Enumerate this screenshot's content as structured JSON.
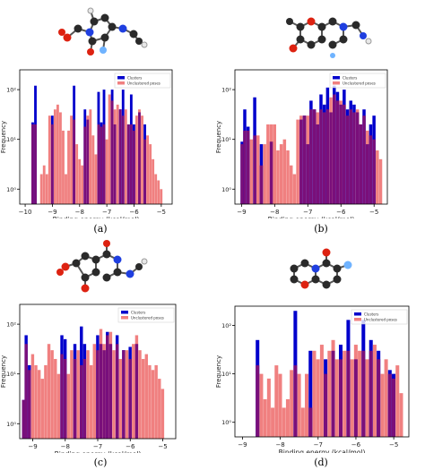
{
  "figure": {
    "captions": [
      "(a)",
      "(b)",
      "(c)",
      "(d)"
    ]
  },
  "colors": {
    "clusters": "#0000cc",
    "unclustered": "#f08080",
    "overlap": "#7a0f7a",
    "atom_carbon": "#2a2a2a",
    "atom_oxygen": "#dd2211",
    "atom_nitrogen": "#1f3fe0",
    "atom_fluorine": "#6fb3ff",
    "atom_hydrogen": "#e8e8e8"
  },
  "chart_data": [
    {
      "type": "bar",
      "log_y": true,
      "xlabel": "Binding energy (kcal/mol)",
      "ylabel": "Frequency",
      "xlim": [
        -10.2,
        -4.6
      ],
      "ylim": [
        0.5,
        250
      ],
      "xticks": [
        -10,
        -9,
        -8,
        -7,
        -6,
        -5
      ],
      "yticks": [
        1,
        10,
        100
      ],
      "ytick_labels": [
        "10⁰",
        "10¹",
        "10²"
      ],
      "legend": [
        "Clusters",
        "Unclustered poses"
      ],
      "legend_position": "top-right",
      "bins": [
        {
          "x": -9.72,
          "u": 20,
          "c": 22
        },
        {
          "x": -9.62,
          "u": 20,
          "c": 120
        },
        {
          "x": -9.4,
          "u": 2,
          "c": 0
        },
        {
          "x": -9.3,
          "u": 3,
          "c": 0
        },
        {
          "x": -9.2,
          "u": 2,
          "c": 0
        },
        {
          "x": -9.1,
          "u": 30,
          "c": 0
        },
        {
          "x": -9.0,
          "u": 20,
          "c": 30
        },
        {
          "x": -8.9,
          "u": 40,
          "c": 0
        },
        {
          "x": -8.8,
          "u": 50,
          "c": 0
        },
        {
          "x": -8.7,
          "u": 35,
          "c": 0
        },
        {
          "x": -8.6,
          "u": 15,
          "c": 0
        },
        {
          "x": -8.5,
          "u": 2,
          "c": 0
        },
        {
          "x": -8.4,
          "u": 15,
          "c": 0
        },
        {
          "x": -8.3,
          "u": 30,
          "c": 0
        },
        {
          "x": -8.2,
          "u": 25,
          "c": 120
        },
        {
          "x": -8.1,
          "u": 8,
          "c": 0
        },
        {
          "x": -8.0,
          "u": 4,
          "c": 0
        },
        {
          "x": -7.9,
          "u": 3,
          "c": 0
        },
        {
          "x": -7.8,
          "u": 18,
          "c": 40
        },
        {
          "x": -7.7,
          "u": 30,
          "c": 25
        },
        {
          "x": -7.6,
          "u": 40,
          "c": 0
        },
        {
          "x": -7.5,
          "u": 12,
          "c": 0
        },
        {
          "x": -7.4,
          "u": 5,
          "c": 0
        },
        {
          "x": -7.3,
          "u": 20,
          "c": 90
        },
        {
          "x": -7.2,
          "u": 18,
          "c": 22
        },
        {
          "x": -7.1,
          "u": 20,
          "c": 100
        },
        {
          "x": -7.0,
          "u": 10,
          "c": 0
        },
        {
          "x": -6.9,
          "u": 80,
          "c": 0
        },
        {
          "x": -6.8,
          "u": 60,
          "c": 100
        },
        {
          "x": -6.7,
          "u": 40,
          "c": 20
        },
        {
          "x": -6.6,
          "u": 50,
          "c": 0
        },
        {
          "x": -6.5,
          "u": 40,
          "c": 40
        },
        {
          "x": -6.4,
          "u": 30,
          "c": 100
        },
        {
          "x": -6.3,
          "u": 40,
          "c": 0
        },
        {
          "x": -6.2,
          "u": 20,
          "c": 20
        },
        {
          "x": -6.1,
          "u": 20,
          "c": 80
        },
        {
          "x": -6.0,
          "u": 15,
          "c": 20
        },
        {
          "x": -5.9,
          "u": 30,
          "c": 0
        },
        {
          "x": -5.8,
          "u": 40,
          "c": 35
        },
        {
          "x": -5.7,
          "u": 30,
          "c": 0
        },
        {
          "x": -5.6,
          "u": 10,
          "c": 20
        },
        {
          "x": -5.5,
          "u": 12,
          "c": 0
        },
        {
          "x": -5.4,
          "u": 8,
          "c": 0
        },
        {
          "x": -5.3,
          "u": 4,
          "c": 0
        },
        {
          "x": -5.2,
          "u": 2,
          "c": 0
        },
        {
          "x": -5.1,
          "u": 1.5,
          "c": 0
        },
        {
          "x": -5.0,
          "u": 1,
          "c": 0
        }
      ]
    },
    {
      "type": "bar",
      "log_y": true,
      "xlabel": "Binding energy (kcal/mol)",
      "ylabel": "Frequency",
      "xlim": [
        -9.2,
        -4.6
      ],
      "ylim": [
        0.5,
        250
      ],
      "xticks": [
        -9,
        -8,
        -7,
        -6,
        -5
      ],
      "yticks": [
        1,
        10,
        100
      ],
      "ytick_labels": [
        "10⁰",
        "10¹",
        "10²"
      ],
      "legend": [
        "Clusters",
        "Unclustered poses"
      ],
      "legend_position": "top-right",
      "bins": [
        {
          "x": -8.98,
          "u": 8,
          "c": 9
        },
        {
          "x": -8.9,
          "u": 15,
          "c": 40
        },
        {
          "x": -8.8,
          "u": 15,
          "c": 18
        },
        {
          "x": -8.7,
          "u": 10,
          "c": 0
        },
        {
          "x": -8.6,
          "u": 12,
          "c": 70
        },
        {
          "x": -8.5,
          "u": 12,
          "c": 0
        },
        {
          "x": -8.4,
          "u": 3,
          "c": 8
        },
        {
          "x": -8.3,
          "u": 8,
          "c": 0
        },
        {
          "x": -8.2,
          "u": 20,
          "c": 0
        },
        {
          "x": -8.1,
          "u": 20,
          "c": 9
        },
        {
          "x": -8.0,
          "u": 20,
          "c": 0
        },
        {
          "x": -7.9,
          "u": 6,
          "c": 0
        },
        {
          "x": -7.8,
          "u": 8,
          "c": 0
        },
        {
          "x": -7.7,
          "u": 10,
          "c": 0
        },
        {
          "x": -7.6,
          "u": 6,
          "c": 0
        },
        {
          "x": -7.5,
          "u": 3,
          "c": 0
        },
        {
          "x": -7.4,
          "u": 2,
          "c": 0
        },
        {
          "x": -7.3,
          "u": 25,
          "c": 0
        },
        {
          "x": -7.2,
          "u": 30,
          "c": 25
        },
        {
          "x": -7.1,
          "u": 30,
          "c": 30
        },
        {
          "x": -7.0,
          "u": 30,
          "c": 8
        },
        {
          "x": -6.9,
          "u": 40,
          "c": 60
        },
        {
          "x": -6.8,
          "u": 40,
          "c": 40
        },
        {
          "x": -6.7,
          "u": 35,
          "c": 20
        },
        {
          "x": -6.6,
          "u": 40,
          "c": 80
        },
        {
          "x": -6.5,
          "u": 35,
          "c": 50
        },
        {
          "x": -6.4,
          "u": 40,
          "c": 110
        },
        {
          "x": -6.3,
          "u": 70,
          "c": 35
        },
        {
          "x": -6.2,
          "u": 80,
          "c": 120
        },
        {
          "x": -6.1,
          "u": 60,
          "c": 90
        },
        {
          "x": -6.0,
          "u": 60,
          "c": 50
        },
        {
          "x": -5.9,
          "u": 50,
          "c": 100
        },
        {
          "x": -5.8,
          "u": 30,
          "c": 40
        },
        {
          "x": -5.7,
          "u": 40,
          "c": 60
        },
        {
          "x": -5.6,
          "u": 35,
          "c": 50
        },
        {
          "x": -5.5,
          "u": 40,
          "c": 35
        },
        {
          "x": -5.4,
          "u": 20,
          "c": 20
        },
        {
          "x": -5.3,
          "u": 30,
          "c": 40
        },
        {
          "x": -5.2,
          "u": 15,
          "c": 8
        },
        {
          "x": -5.1,
          "u": 12,
          "c": 20
        },
        {
          "x": -5.0,
          "u": 10,
          "c": 30
        },
        {
          "x": -4.9,
          "u": 6,
          "c": 0
        },
        {
          "x": -4.8,
          "u": 4,
          "c": 0
        }
      ]
    },
    {
      "type": "bar",
      "log_y": true,
      "xlabel": "Binding energy (kcal/mol)",
      "ylabel": "Frequency",
      "xlim": [
        -9.4,
        -4.6
      ],
      "ylim": [
        0.5,
        250
      ],
      "xticks": [
        -9,
        -8,
        -7,
        -6,
        -5
      ],
      "yticks": [
        1,
        10,
        100
      ],
      "ytick_labels": [
        "10⁰",
        "10¹",
        "10²"
      ],
      "legend": [
        "Clusters",
        "Unclustered poses"
      ],
      "legend_position": "top-right",
      "bins": [
        {
          "x": -9.28,
          "u": 3,
          "c": 3
        },
        {
          "x": -9.2,
          "u": 40,
          "c": 60
        },
        {
          "x": -9.1,
          "u": 12,
          "c": 15
        },
        {
          "x": -9.0,
          "u": 25,
          "c": 0
        },
        {
          "x": -8.9,
          "u": 15,
          "c": 0
        },
        {
          "x": -8.8,
          "u": 12,
          "c": 0
        },
        {
          "x": -8.7,
          "u": 8,
          "c": 0
        },
        {
          "x": -8.6,
          "u": 15,
          "c": 0
        },
        {
          "x": -8.5,
          "u": 40,
          "c": 0
        },
        {
          "x": -8.4,
          "u": 30,
          "c": 0
        },
        {
          "x": -8.3,
          "u": 20,
          "c": 0
        },
        {
          "x": -8.2,
          "u": 10,
          "c": 0
        },
        {
          "x": -8.1,
          "u": 25,
          "c": 60
        },
        {
          "x": -8.0,
          "u": 20,
          "c": 50
        },
        {
          "x": -7.9,
          "u": 10,
          "c": 0
        },
        {
          "x": -7.8,
          "u": 30,
          "c": 0
        },
        {
          "x": -7.7,
          "u": 20,
          "c": 40
        },
        {
          "x": -7.6,
          "u": 30,
          "c": 0
        },
        {
          "x": -7.5,
          "u": 15,
          "c": 90
        },
        {
          "x": -7.4,
          "u": 20,
          "c": 40
        },
        {
          "x": -7.3,
          "u": 30,
          "c": 0
        },
        {
          "x": -7.2,
          "u": 15,
          "c": 0
        },
        {
          "x": -7.1,
          "u": 40,
          "c": 0
        },
        {
          "x": -7.0,
          "u": 30,
          "c": 60
        },
        {
          "x": -6.9,
          "u": 80,
          "c": 40
        },
        {
          "x": -6.8,
          "u": 40,
          "c": 30
        },
        {
          "x": -6.7,
          "u": 60,
          "c": 70
        },
        {
          "x": -6.6,
          "u": 70,
          "c": 40
        },
        {
          "x": -6.5,
          "u": 30,
          "c": 0
        },
        {
          "x": -6.4,
          "u": 40,
          "c": 60
        },
        {
          "x": -6.3,
          "u": 20,
          "c": 0
        },
        {
          "x": -6.2,
          "u": 30,
          "c": 30
        },
        {
          "x": -6.1,
          "u": 30,
          "c": 0
        },
        {
          "x": -6.0,
          "u": 20,
          "c": 35
        },
        {
          "x": -5.9,
          "u": 40,
          "c": 0
        },
        {
          "x": -5.8,
          "u": 60,
          "c": 40
        },
        {
          "x": -5.7,
          "u": 30,
          "c": 0
        },
        {
          "x": -5.6,
          "u": 20,
          "c": 0
        },
        {
          "x": -5.5,
          "u": 25,
          "c": 0
        },
        {
          "x": -5.4,
          "u": 15,
          "c": 0
        },
        {
          "x": -5.3,
          "u": 12,
          "c": 0
        },
        {
          "x": -5.2,
          "u": 15,
          "c": 0
        },
        {
          "x": -5.1,
          "u": 8,
          "c": 0
        },
        {
          "x": -5.0,
          "u": 5,
          "c": 0
        }
      ]
    },
    {
      "type": "bar",
      "log_y": true,
      "xlabel": "Binding energy (kcal/mol)",
      "ylabel": "Frequency",
      "xlim": [
        -9.2,
        -4.6
      ],
      "ylim": [
        0.5,
        250
      ],
      "xticks": [
        -9,
        -8,
        -7,
        -6,
        -5
      ],
      "yticks": [
        1,
        10,
        100
      ],
      "ytick_labels": [
        "10⁰",
        "10¹",
        "10²"
      ],
      "legend": [
        "Clusters",
        "Unclustered poses"
      ],
      "legend_position": "top-right",
      "bins": [
        {
          "x": -8.6,
          "u": 15,
          "c": 50
        },
        {
          "x": -8.5,
          "u": 10,
          "c": 0
        },
        {
          "x": -8.4,
          "u": 3,
          "c": 0
        },
        {
          "x": -8.3,
          "u": 8,
          "c": 0
        },
        {
          "x": -8.2,
          "u": 2,
          "c": 0
        },
        {
          "x": -8.1,
          "u": 15,
          "c": 0
        },
        {
          "x": -8.0,
          "u": 10,
          "c": 0
        },
        {
          "x": -7.9,
          "u": 2,
          "c": 0
        },
        {
          "x": -7.8,
          "u": 3,
          "c": 0
        },
        {
          "x": -7.7,
          "u": 12,
          "c": 0
        },
        {
          "x": -7.6,
          "u": 15,
          "c": 200
        },
        {
          "x": -7.5,
          "u": 10,
          "c": 0
        },
        {
          "x": -7.4,
          "u": 2,
          "c": 0
        },
        {
          "x": -7.3,
          "u": 10,
          "c": 0
        },
        {
          "x": -7.2,
          "u": 2,
          "c": 30
        },
        {
          "x": -7.1,
          "u": 30,
          "c": 0
        },
        {
          "x": -7.0,
          "u": 20,
          "c": 0
        },
        {
          "x": -6.9,
          "u": 40,
          "c": 0
        },
        {
          "x": -6.8,
          "u": 10,
          "c": 20
        },
        {
          "x": -6.7,
          "u": 30,
          "c": 0
        },
        {
          "x": -6.6,
          "u": 50,
          "c": 30
        },
        {
          "x": -6.5,
          "u": 20,
          "c": 0
        },
        {
          "x": -6.4,
          "u": 20,
          "c": 40
        },
        {
          "x": -6.3,
          "u": 30,
          "c": 0
        },
        {
          "x": -6.2,
          "u": 30,
          "c": 130
        },
        {
          "x": -6.1,
          "u": 20,
          "c": 0
        },
        {
          "x": -6.0,
          "u": 40,
          "c": 20
        },
        {
          "x": -5.9,
          "u": 30,
          "c": 0
        },
        {
          "x": -5.8,
          "u": 30,
          "c": 130
        },
        {
          "x": -5.7,
          "u": 20,
          "c": 0
        },
        {
          "x": -5.6,
          "u": 30,
          "c": 50
        },
        {
          "x": -5.5,
          "u": 40,
          "c": 0
        },
        {
          "x": -5.4,
          "u": 20,
          "c": 30
        },
        {
          "x": -5.3,
          "u": 10,
          "c": 0
        },
        {
          "x": -5.2,
          "u": 20,
          "c": 0
        },
        {
          "x": -5.1,
          "u": 10,
          "c": 12
        },
        {
          "x": -5.0,
          "u": 8,
          "c": 10
        },
        {
          "x": -4.9,
          "u": 15,
          "c": 0
        },
        {
          "x": -4.8,
          "u": 4,
          "c": 0
        }
      ]
    }
  ]
}
